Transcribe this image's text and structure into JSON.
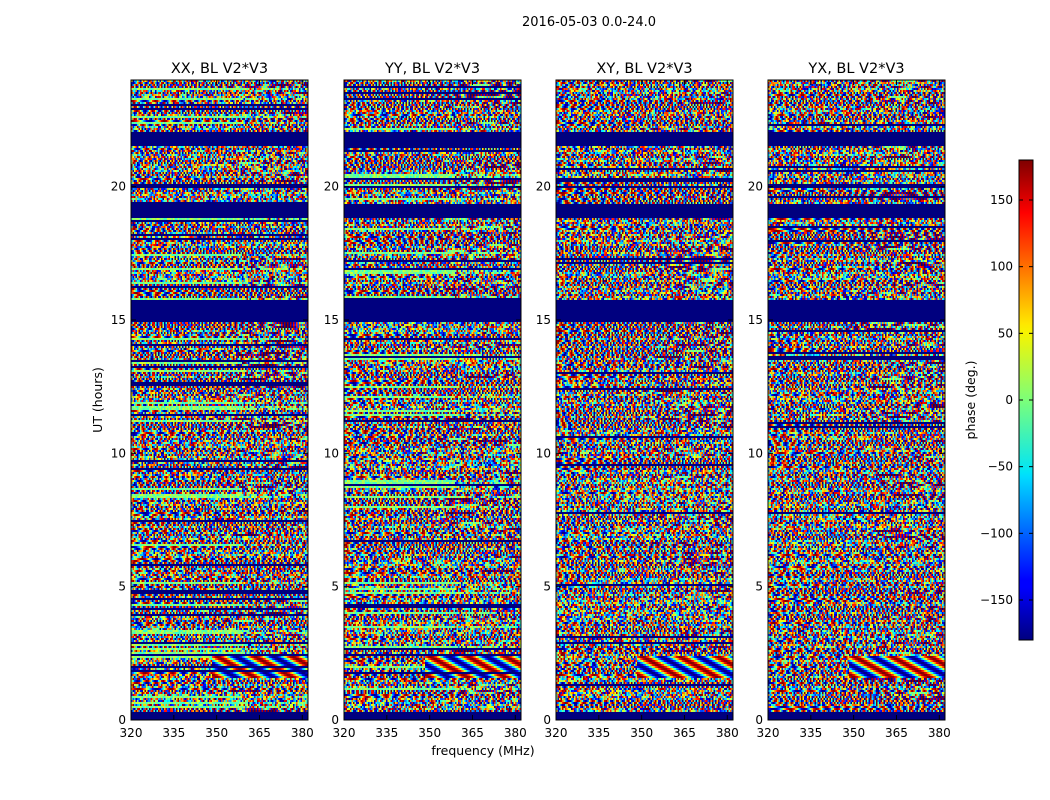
{
  "chart_data": {
    "type": "heatmap",
    "title": "2016-05-03 0.0-24.0",
    "xlabel": "frequency (MHz)",
    "ylabel": "UT (hours)",
    "xlim": [
      320,
      382
    ],
    "ylim": [
      0,
      24
    ],
    "xticks": [
      320,
      335,
      350,
      365,
      380
    ],
    "yticks": [
      0,
      5,
      10,
      15,
      20
    ],
    "panels": [
      {
        "name": "XX, BL V2*V3",
        "pol": "XX",
        "baseline": "V2*V3"
      },
      {
        "name": "YY, BL V2*V3",
        "pol": "YY",
        "baseline": "V2*V3"
      },
      {
        "name": "XY, BL V2*V3",
        "pol": "XY",
        "baseline": "V2*V3"
      },
      {
        "name": "YX, BL V2*V3",
        "pol": "YX",
        "baseline": "V2*V3"
      }
    ],
    "flagged_ut_bands_hours": [
      [
        0.0,
        0.3
      ],
      [
        14.9,
        15.7
      ],
      [
        18.8,
        19.3
      ],
      [
        19.9,
        20.0
      ],
      [
        21.5,
        22.0
      ]
    ],
    "colorbar": {
      "label": "phase (deg.)",
      "range": [
        -180,
        180
      ],
      "ticks": [
        -150,
        -100,
        -50,
        0,
        50,
        100,
        150
      ],
      "tick_labels": [
        "−150",
        "−100",
        "−50",
        "0",
        "50",
        "100",
        "150"
      ],
      "colormap": "jet"
    }
  },
  "colors": {
    "flagged": "#00007f",
    "background": "#ffffff"
  }
}
